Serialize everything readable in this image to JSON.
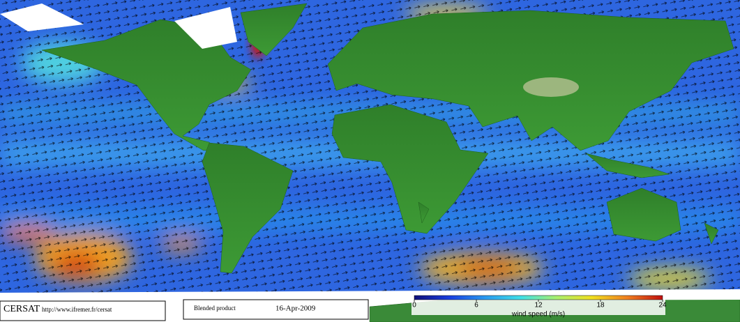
{
  "footer": {
    "logo": "CERSAT",
    "url": "http://www.ifremer.fr/cersat",
    "product": "Blended product",
    "date": "16-Apr-2009"
  },
  "colorbar": {
    "label": "wind speed (m/s)",
    "lim": [
      0,
      24
    ],
    "ticks": [
      0,
      6,
      12,
      18,
      24
    ],
    "colors": [
      "#10107a",
      "#1a3fe0",
      "#2a9af0",
      "#40e0e8",
      "#a8f070",
      "#f0e020",
      "#f08020",
      "#c01010"
    ]
  }
}
